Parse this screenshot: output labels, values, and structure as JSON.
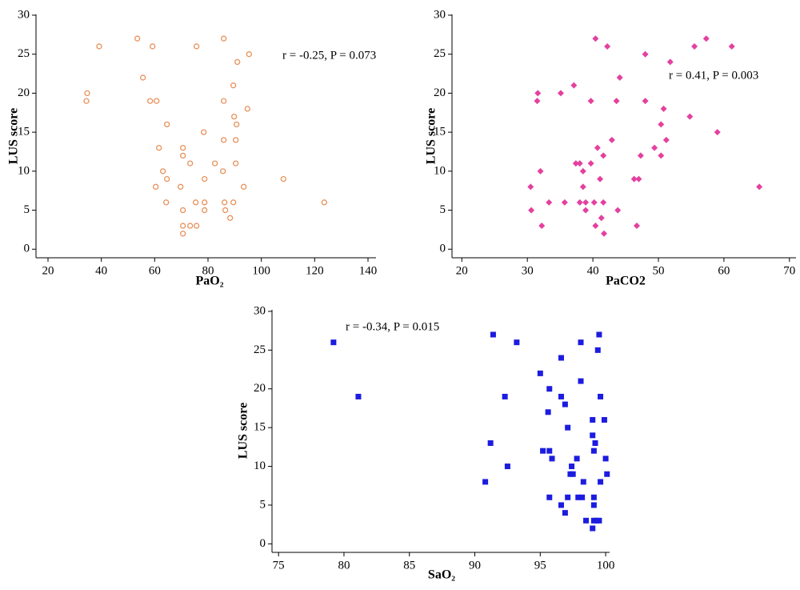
{
  "chart_data": [
    {
      "type": "scatter",
      "marker": "circle-open",
      "color": "#e8915a",
      "x_label": "PaO₂",
      "y_label": "LUS score",
      "annotation": "r = -0.25, P = 0.073",
      "xlim": [
        15.5,
        143
      ],
      "ylim": [
        -1.1,
        30.1
      ],
      "xticks": [
        20,
        40,
        60,
        80,
        100,
        120,
        140
      ],
      "yticks": [
        0,
        5,
        10,
        15,
        20,
        25,
        30
      ],
      "x": [
        39.2,
        34.7,
        34.4,
        53.5,
        59.2,
        55.6,
        58.3,
        60.7,
        64.6,
        61.6,
        70.6,
        70.6,
        63.1,
        64.6,
        73.3,
        60.4,
        69.7,
        64.3,
        70.6,
        70.6,
        70.6,
        73.3,
        75.7,
        75.4,
        78.7,
        78.7,
        78.7,
        75.7,
        78.4,
        82.6,
        85.9,
        85.6,
        85.9,
        85.9,
        89.5,
        89.8,
        90.7,
        90.4,
        90.4,
        91,
        95.4,
        94.8,
        93.4,
        86.2,
        89.5,
        86.5,
        88.3,
        108.3,
        123.6
      ],
      "values": [
        26,
        20,
        19,
        27,
        26,
        22,
        19,
        19,
        16,
        13,
        13,
        12,
        10,
        9,
        11,
        8,
        8,
        6,
        5,
        3,
        2,
        3,
        3,
        6,
        6,
        5,
        9,
        26,
        15,
        11,
        27,
        10,
        14,
        19,
        21,
        17,
        16,
        14,
        11,
        24,
        25,
        18,
        8,
        6,
        6,
        5,
        4,
        9,
        6
      ]
    },
    {
      "type": "scatter",
      "marker": "diamond",
      "color": "#e4409f",
      "x_label": "PaCO2",
      "y_label": "LUS score",
      "annotation": "r = 0.41, P = 0.003",
      "xlim": [
        18.5,
        71
      ],
      "ylim": [
        -1.1,
        30.1
      ],
      "xticks": [
        20,
        30,
        40,
        50,
        60,
        70
      ],
      "yticks": [
        0,
        5,
        10,
        15,
        20,
        25,
        30
      ],
      "x": [
        40.4,
        57.3,
        42.2,
        55.5,
        61.2,
        48,
        51.8,
        44.1,
        37.1,
        31.6,
        35.1,
        31.5,
        39.7,
        43.6,
        48,
        50.8,
        54.8,
        50.4,
        59,
        42.9,
        51.2,
        40.7,
        49.4,
        41.6,
        47.3,
        50.4,
        39.7,
        37.4,
        38,
        32,
        38.5,
        41.1,
        46.3,
        47,
        30.5,
        38.5,
        65.4,
        33.3,
        35.7,
        38,
        38.9,
        40.2,
        41.6,
        30.6,
        38.9,
        43.8,
        41.3,
        32.2,
        40.4,
        46.7,
        41.7
      ],
      "values": [
        27,
        27,
        26,
        26,
        26,
        25,
        24,
        22,
        21,
        20,
        20,
        19,
        19,
        19,
        19,
        18,
        17,
        16,
        15,
        14,
        14,
        13,
        13,
        12,
        12,
        12,
        11,
        11,
        11,
        10,
        10,
        9,
        9,
        9,
        8,
        8,
        8,
        6,
        6,
        6,
        6,
        6,
        6,
        5,
        5,
        5,
        4,
        3,
        3,
        3,
        2
      ]
    },
    {
      "type": "scatter",
      "marker": "square",
      "color": "#1c1ce0",
      "x_label": "SaO₂",
      "y_label": "LUS score",
      "annotation": "r = -0.34, P = 0.015",
      "xlim": [
        74.5,
        100.3
      ],
      "ylim": [
        -1.1,
        30.2
      ],
      "xticks": [
        75,
        80,
        85,
        90,
        95,
        100
      ],
      "yticks": [
        0,
        5,
        10,
        15,
        20,
        25,
        30
      ],
      "x": [
        79.2,
        81.1,
        91.4,
        93.2,
        92.3,
        91.2,
        92.5,
        90.8,
        95,
        95.7,
        95.6,
        96.6,
        96.6,
        96.9,
        97.1,
        95.2,
        95.7,
        95.9,
        95.7,
        96.6,
        96.9,
        97.1,
        97.4,
        97.3,
        97.5,
        97.8,
        98.1,
        98.1,
        97.9,
        98.2,
        98.3,
        98.5,
        99.5,
        99.4,
        99.6,
        99,
        99.9,
        99,
        99.2,
        99.1,
        100,
        100.1,
        99.6,
        99.1,
        99.1,
        99.1,
        99.3,
        99.5,
        99
      ],
      "values": [
        26,
        19,
        27,
        26,
        19,
        13,
        10,
        8,
        22,
        20,
        17,
        24,
        19,
        18,
        15,
        12,
        12,
        11,
        6,
        5,
        4,
        6,
        10,
        9,
        9,
        11,
        26,
        21,
        6,
        6,
        8,
        3,
        27,
        25,
        19,
        16,
        16,
        14,
        13,
        12,
        11,
        9,
        8,
        6,
        5,
        3,
        3,
        3,
        2
      ]
    }
  ]
}
